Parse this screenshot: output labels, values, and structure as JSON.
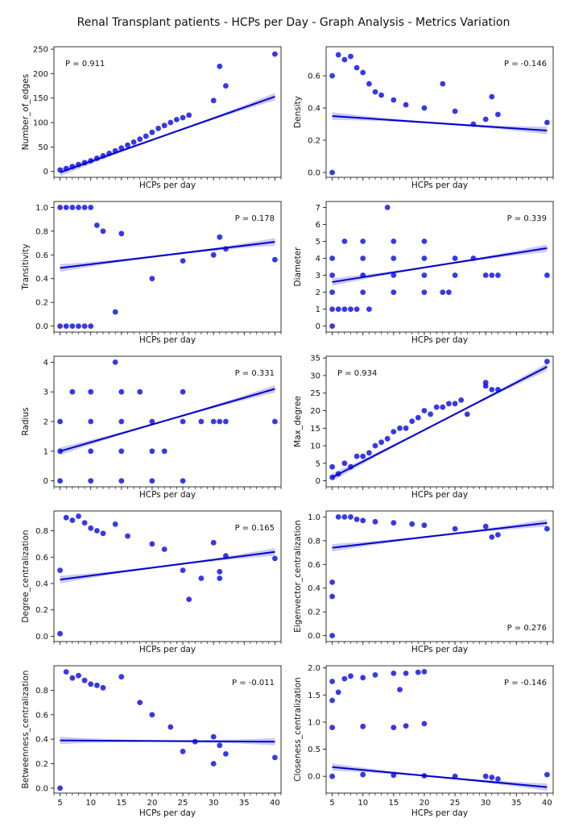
{
  "figure": {
    "title": "Renal Transplant patients - HCPs per Day - Graph Analysis - Metrics Variation",
    "colors": {
      "scatter": "#1414e6",
      "line": "#0000cc",
      "band": "#b4b4f0",
      "axis": "#000000"
    }
  },
  "chart_data": [
    {
      "type": "scatter",
      "title": "",
      "xlabel": "HCPs per day",
      "ylabel": "Number_of_edges",
      "xlim": [
        4,
        41
      ],
      "ylim": [
        -12,
        255
      ],
      "xticks": [
        5,
        10,
        15,
        20,
        25,
        30,
        35,
        40
      ],
      "yticks": [
        0,
        50,
        100,
        150,
        200,
        250
      ],
      "annotation": "P =  0.911",
      "fit": [
        [
          5,
          -2
        ],
        [
          40,
          153
        ]
      ],
      "points": [
        [
          5,
          3
        ],
        [
          6,
          6
        ],
        [
          7,
          10
        ],
        [
          8,
          14
        ],
        [
          9,
          18
        ],
        [
          10,
          22
        ],
        [
          11,
          27
        ],
        [
          12,
          32
        ],
        [
          13,
          37
        ],
        [
          14,
          42
        ],
        [
          15,
          48
        ],
        [
          16,
          54
        ],
        [
          17,
          60
        ],
        [
          18,
          66
        ],
        [
          19,
          72
        ],
        [
          20,
          80
        ],
        [
          21,
          88
        ],
        [
          22,
          94
        ],
        [
          23,
          100
        ],
        [
          24,
          106
        ],
        [
          25,
          110
        ],
        [
          26,
          115
        ],
        [
          30,
          145
        ],
        [
          31,
          215
        ],
        [
          32,
          175
        ],
        [
          40,
          240
        ]
      ]
    },
    {
      "type": "scatter",
      "title": "",
      "xlabel": "HCPs per day",
      "ylabel": "Density",
      "xlim": [
        4,
        41
      ],
      "ylim": [
        -0.03,
        0.78
      ],
      "xticks": [
        5,
        10,
        15,
        20,
        25,
        30,
        35,
        40
      ],
      "yticks": [
        0.0,
        0.2,
        0.4,
        0.6
      ],
      "annotation": "P = -0.146",
      "fit": [
        [
          5,
          0.35
        ],
        [
          40,
          0.26
        ]
      ],
      "points": [
        [
          5,
          0.0
        ],
        [
          5,
          0.6
        ],
        [
          6,
          0.73
        ],
        [
          7,
          0.7
        ],
        [
          8,
          0.72
        ],
        [
          9,
          0.65
        ],
        [
          10,
          0.62
        ],
        [
          11,
          0.55
        ],
        [
          12,
          0.5
        ],
        [
          13,
          0.48
        ],
        [
          15,
          0.45
        ],
        [
          17,
          0.42
        ],
        [
          20,
          0.4
        ],
        [
          23,
          0.55
        ],
        [
          25,
          0.38
        ],
        [
          28,
          0.3
        ],
        [
          30,
          0.33
        ],
        [
          31,
          0.47
        ],
        [
          32,
          0.36
        ],
        [
          40,
          0.31
        ]
      ]
    },
    {
      "type": "scatter",
      "title": "",
      "xlabel": "HCPs per day",
      "ylabel": "Transitivity",
      "xlim": [
        4,
        41
      ],
      "ylim": [
        -0.05,
        1.05
      ],
      "xticks": [
        5,
        10,
        15,
        20,
        25,
        30,
        35,
        40
      ],
      "yticks": [
        0.0,
        0.2,
        0.4,
        0.6,
        0.8,
        1.0
      ],
      "annotation": "P =  0.178",
      "fit": [
        [
          5,
          0.49
        ],
        [
          40,
          0.71
        ]
      ],
      "points": [
        [
          5,
          1.0
        ],
        [
          6,
          1.0
        ],
        [
          7,
          1.0
        ],
        [
          8,
          1.0
        ],
        [
          9,
          1.0
        ],
        [
          10,
          1.0
        ],
        [
          5,
          0.0
        ],
        [
          6,
          0.0
        ],
        [
          7,
          0.0
        ],
        [
          8,
          0.0
        ],
        [
          9,
          0.0
        ],
        [
          10,
          0.0
        ],
        [
          11,
          0.85
        ],
        [
          12,
          0.8
        ],
        [
          14,
          0.12
        ],
        [
          15,
          0.78
        ],
        [
          20,
          0.4
        ],
        [
          25,
          0.55
        ],
        [
          30,
          0.6
        ],
        [
          31,
          0.75
        ],
        [
          32,
          0.65
        ],
        [
          40,
          0.56
        ]
      ]
    },
    {
      "type": "scatter",
      "title": "",
      "xlabel": "HCPs per day",
      "ylabel": "Diameter",
      "xlim": [
        4,
        41
      ],
      "ylim": [
        -0.35,
        7.35
      ],
      "xticks": [
        5,
        10,
        15,
        20,
        25,
        30,
        35,
        40
      ],
      "yticks": [
        0,
        1,
        2,
        3,
        4,
        5,
        6,
        7
      ],
      "annotation": "P =  0.339",
      "fit": [
        [
          5,
          2.6
        ],
        [
          40,
          4.6
        ]
      ],
      "points": [
        [
          5,
          0
        ],
        [
          5,
          1
        ],
        [
          6,
          1
        ],
        [
          7,
          1
        ],
        [
          8,
          1
        ],
        [
          9,
          1
        ],
        [
          11,
          1
        ],
        [
          5,
          2
        ],
        [
          10,
          2
        ],
        [
          15,
          2
        ],
        [
          20,
          2
        ],
        [
          23,
          2
        ],
        [
          24,
          2
        ],
        [
          5,
          3
        ],
        [
          10,
          3
        ],
        [
          15,
          3
        ],
        [
          20,
          3
        ],
        [
          25,
          3
        ],
        [
          30,
          3
        ],
        [
          31,
          3
        ],
        [
          32,
          3
        ],
        [
          40,
          3
        ],
        [
          5,
          4
        ],
        [
          10,
          4
        ],
        [
          15,
          4
        ],
        [
          20,
          4
        ],
        [
          25,
          4
        ],
        [
          28,
          4
        ],
        [
          7,
          5
        ],
        [
          10,
          5
        ],
        [
          15,
          5
        ],
        [
          20,
          5
        ],
        [
          14,
          7
        ]
      ]
    },
    {
      "type": "scatter",
      "title": "",
      "xlabel": "HCPs per day",
      "ylabel": "Radius",
      "xlim": [
        4,
        41
      ],
      "ylim": [
        -0.2,
        4.2
      ],
      "xticks": [
        5,
        10,
        15,
        20,
        25,
        30,
        35,
        40
      ],
      "yticks": [
        0,
        1,
        2,
        3,
        4
      ],
      "annotation": "P =  0.331",
      "fit": [
        [
          5,
          1.0
        ],
        [
          40,
          3.1
        ]
      ],
      "points": [
        [
          5,
          0
        ],
        [
          10,
          0
        ],
        [
          15,
          0
        ],
        [
          20,
          0
        ],
        [
          25,
          0
        ],
        [
          5,
          1
        ],
        [
          10,
          1
        ],
        [
          15,
          1
        ],
        [
          20,
          1
        ],
        [
          22,
          1
        ],
        [
          5,
          2
        ],
        [
          10,
          2
        ],
        [
          15,
          2
        ],
        [
          20,
          2
        ],
        [
          25,
          2
        ],
        [
          28,
          2
        ],
        [
          30,
          2
        ],
        [
          31,
          2
        ],
        [
          32,
          2
        ],
        [
          40,
          2
        ],
        [
          7,
          3
        ],
        [
          10,
          3
        ],
        [
          15,
          3
        ],
        [
          18,
          3
        ],
        [
          25,
          3
        ],
        [
          14,
          4
        ]
      ]
    },
    {
      "type": "scatter",
      "title": "",
      "xlabel": "HCPs per day",
      "ylabel": "Max_degree",
      "xlim": [
        4,
        41
      ],
      "ylim": [
        -1.7,
        35.5
      ],
      "xticks": [
        5,
        10,
        15,
        20,
        25,
        30,
        35,
        40
      ],
      "yticks": [
        0,
        5,
        10,
        15,
        20,
        25,
        30,
        35
      ],
      "annotation": "P =  0.934",
      "fit": [
        [
          5,
          1.0
        ],
        [
          40,
          32.5
        ]
      ],
      "points": [
        [
          5,
          1
        ],
        [
          5,
          4
        ],
        [
          6,
          2
        ],
        [
          7,
          5
        ],
        [
          8,
          4
        ],
        [
          9,
          7
        ],
        [
          10,
          7
        ],
        [
          11,
          8
        ],
        [
          12,
          10
        ],
        [
          13,
          11
        ],
        [
          14,
          12
        ],
        [
          15,
          14
        ],
        [
          16,
          15
        ],
        [
          17,
          15
        ],
        [
          18,
          17
        ],
        [
          19,
          18
        ],
        [
          20,
          20
        ],
        [
          21,
          19
        ],
        [
          22,
          21
        ],
        [
          23,
          21
        ],
        [
          24,
          22
        ],
        [
          25,
          22
        ],
        [
          26,
          23
        ],
        [
          27,
          19
        ],
        [
          30,
          28
        ],
        [
          30,
          27
        ],
        [
          31,
          26
        ],
        [
          32,
          26
        ],
        [
          40,
          34
        ]
      ]
    },
    {
      "type": "scatter",
      "title": "",
      "xlabel": "HCPs per day",
      "ylabel": "Degree_centralization",
      "xlim": [
        4,
        41
      ],
      "ylim": [
        -0.04,
        0.95
      ],
      "xticks": [
        5,
        10,
        15,
        20,
        25,
        30,
        35,
        40
      ],
      "yticks": [
        0.0,
        0.2,
        0.4,
        0.6,
        0.8
      ],
      "annotation": "P =  0.165",
      "fit": [
        [
          5,
          0.43
        ],
        [
          40,
          0.64
        ]
      ],
      "points": [
        [
          5,
          0.02
        ],
        [
          5,
          0.5
        ],
        [
          6,
          0.9
        ],
        [
          7,
          0.88
        ],
        [
          8,
          0.91
        ],
        [
          9,
          0.86
        ],
        [
          10,
          0.82
        ],
        [
          11,
          0.8
        ],
        [
          12,
          0.78
        ],
        [
          14,
          0.85
        ],
        [
          16,
          0.76
        ],
        [
          20,
          0.7
        ],
        [
          22,
          0.66
        ],
        [
          25,
          0.5
        ],
        [
          26,
          0.28
        ],
        [
          28,
          0.44
        ],
        [
          30,
          0.71
        ],
        [
          31,
          0.44
        ],
        [
          31,
          0.49
        ],
        [
          32,
          0.61
        ],
        [
          40,
          0.59
        ]
      ]
    },
    {
      "type": "scatter",
      "title": "",
      "xlabel": "HCPs per day",
      "ylabel": "Eigenvector_centralization",
      "xlim": [
        4,
        41
      ],
      "ylim": [
        -0.05,
        1.05
      ],
      "xticks": [
        5,
        10,
        15,
        20,
        25,
        30,
        35,
        40
      ],
      "yticks": [
        0.0,
        0.2,
        0.4,
        0.6,
        0.8,
        1.0
      ],
      "annotation": "P =  0.276",
      "fit": [
        [
          5,
          0.74
        ],
        [
          40,
          0.95
        ]
      ],
      "points": [
        [
          5,
          0.0
        ],
        [
          5,
          0.33
        ],
        [
          5,
          0.45
        ],
        [
          6,
          1.0
        ],
        [
          7,
          1.0
        ],
        [
          8,
          1.0
        ],
        [
          9,
          0.98
        ],
        [
          10,
          0.97
        ],
        [
          12,
          0.96
        ],
        [
          15,
          0.95
        ],
        [
          18,
          0.94
        ],
        [
          20,
          0.93
        ],
        [
          25,
          0.9
        ],
        [
          30,
          0.92
        ],
        [
          31,
          0.83
        ],
        [
          32,
          0.85
        ],
        [
          40,
          0.9
        ]
      ]
    },
    {
      "type": "scatter",
      "title": "",
      "xlabel": "HCPs per day",
      "ylabel": "Betweenness_centralization",
      "xlim": [
        4,
        41
      ],
      "ylim": [
        -0.04,
        1.0
      ],
      "xticks": [
        5,
        10,
        15,
        20,
        25,
        30,
        35,
        40
      ],
      "yticks": [
        0.0,
        0.2,
        0.4,
        0.6,
        0.8
      ],
      "annotation": "P = -0.011",
      "fit": [
        [
          5,
          0.39
        ],
        [
          40,
          0.38
        ]
      ],
      "points": [
        [
          5,
          0.0
        ],
        [
          6,
          0.95
        ],
        [
          7,
          0.9
        ],
        [
          8,
          0.92
        ],
        [
          9,
          0.88
        ],
        [
          10,
          0.85
        ],
        [
          11,
          0.84
        ],
        [
          12,
          0.82
        ],
        [
          15,
          0.91
        ],
        [
          18,
          0.7
        ],
        [
          20,
          0.6
        ],
        [
          23,
          0.5
        ],
        [
          25,
          0.3
        ],
        [
          27,
          0.38
        ],
        [
          30,
          0.42
        ],
        [
          30,
          0.2
        ],
        [
          31,
          0.35
        ],
        [
          32,
          0.28
        ],
        [
          40,
          0.25
        ]
      ]
    },
    {
      "type": "scatter",
      "title": "",
      "xlabel": "HCPs per day",
      "ylabel": "Closeness_centralization",
      "xlim": [
        4,
        41
      ],
      "ylim": [
        -0.31,
        2.04
      ],
      "xticks": [
        5,
        10,
        15,
        20,
        25,
        30,
        35,
        40
      ],
      "yticks": [
        0.0,
        0.5,
        1.0,
        1.5,
        2.0
      ],
      "annotation": "P = -0.146",
      "fit": [
        [
          5,
          0.17
        ],
        [
          40,
          -0.2
        ]
      ],
      "points": [
        [
          5,
          1.75
        ],
        [
          5,
          1.4
        ],
        [
          6,
          1.55
        ],
        [
          7,
          1.8
        ],
        [
          8,
          1.85
        ],
        [
          10,
          1.82
        ],
        [
          12,
          1.87
        ],
        [
          15,
          1.9
        ],
        [
          16,
          1.6
        ],
        [
          17,
          1.9
        ],
        [
          19,
          1.92
        ],
        [
          20,
          1.93
        ],
        [
          5,
          0.9
        ],
        [
          10,
          0.92
        ],
        [
          15,
          0.9
        ],
        [
          17,
          0.93
        ],
        [
          20,
          0.97
        ],
        [
          5,
          0.0
        ],
        [
          10,
          0.03
        ],
        [
          15,
          0.02
        ],
        [
          20,
          0.01
        ],
        [
          25,
          0.0
        ],
        [
          30,
          0.0
        ],
        [
          31,
          -0.02
        ],
        [
          32,
          -0.05
        ],
        [
          40,
          0.03
        ]
      ]
    }
  ]
}
